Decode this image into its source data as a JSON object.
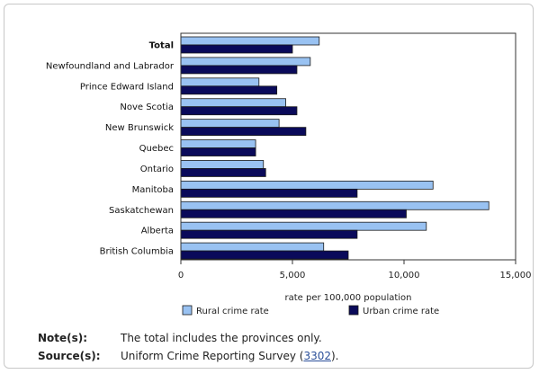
{
  "chart_data": {
    "type": "bar",
    "orientation": "horizontal",
    "categories": [
      "Total",
      "Newfoundland and Labrador",
      "Prince Edward Island",
      "Nove Scotia",
      "New Brunswick",
      "Quebec",
      "Ontario",
      "Manitoba",
      "Saskatchewan",
      "Alberta",
      "British Columbia"
    ],
    "bold_categories": [
      "Total"
    ],
    "series": [
      {
        "name": "Rural crime rate",
        "color": "#99c2f2",
        "values": [
          6200,
          5800,
          3500,
          4700,
          4400,
          3350,
          3700,
          11300,
          13800,
          11000,
          6400
        ]
      },
      {
        "name": "Urban crime rate",
        "color": "#0a0a5a",
        "values": [
          5000,
          5200,
          4300,
          5200,
          5600,
          3350,
          3800,
          7900,
          10100,
          7900,
          7500
        ]
      }
    ],
    "xlabel": "rate per 100,000 population",
    "xlim": [
      0,
      15000
    ],
    "xticks": [
      0,
      5000,
      10000,
      15000
    ],
    "xtick_labels": [
      "0",
      "5,000",
      "10,000",
      "15,000"
    ],
    "grid": false,
    "legend_position": "bottom"
  },
  "notes": {
    "note_label": "Note(s):",
    "note_text": "The total includes the provinces only.",
    "source_label": "Source(s):",
    "source_text": "Uniform Crime Reporting Survey (",
    "source_link": "3302",
    "source_end": ")."
  }
}
